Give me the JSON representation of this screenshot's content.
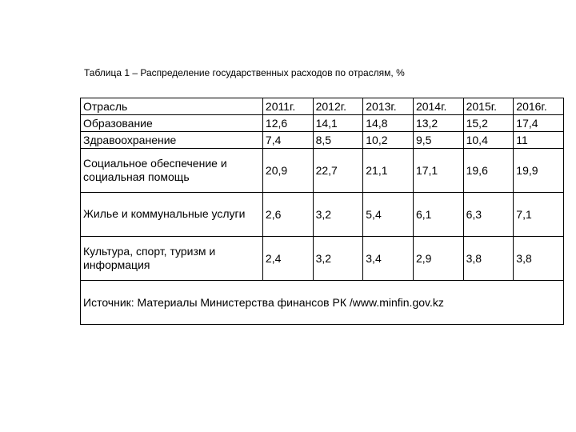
{
  "caption": "Таблица 1 – Распределение государственных расходов по отраслям, %",
  "table": {
    "columns": [
      "Отрасль",
      "2011г.",
      "2012г.",
      "2013г.",
      "2014г.",
      "2015г.",
      "2016г."
    ],
    "rows": [
      {
        "label": "Образование",
        "values": [
          "12,6",
          "14,1",
          "14,8",
          "13,2",
          "15,2",
          "17,4"
        ],
        "height": "norm"
      },
      {
        "label": "Здравоохранение",
        "values": [
          "7,4",
          "8,5",
          "10,2",
          "9,5",
          "10,4",
          "11"
        ],
        "height": "norm"
      },
      {
        "label": "Социальное обеспечение и социальная помощь",
        "values": [
          "20,9",
          "22,7",
          "21,1",
          "17,1",
          "19,6",
          "19,9"
        ],
        "height": "tall"
      },
      {
        "label": "Жилье и коммунальные услуги",
        "values": [
          "2,6",
          "3,2",
          "5,4",
          "6,1",
          "6,3",
          "7,1"
        ],
        "height": "tall"
      },
      {
        "label": "Культура, спорт, туризм и информация",
        "values": [
          "2,4",
          "3,2",
          "3,4",
          "2,9",
          "3,8",
          "3,8"
        ],
        "height": "tall"
      }
    ],
    "source": "Источник: Материалы Министерства финансов РК /www.minfin.gov.kz",
    "column_widths": {
      "label": 200,
      "value": 55
    },
    "border_color": "#000000",
    "background_color": "#ffffff",
    "caption_fontsize": 12,
    "cell_fontsize": 14
  }
}
